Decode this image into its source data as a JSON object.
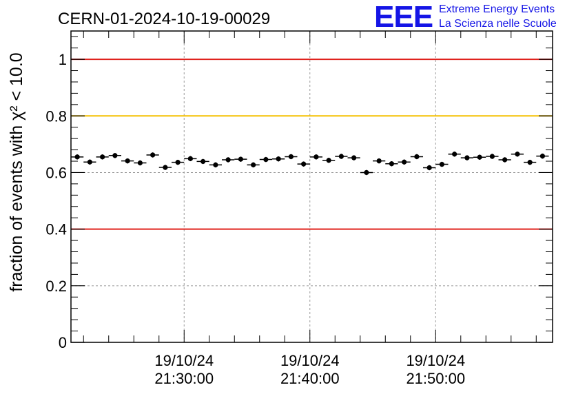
{
  "chart_data": {
    "type": "scatter",
    "title": "CERN-01-2024-10-19-00029",
    "ylabel": "fraction of events with χ² < 10.0",
    "xlabel": "",
    "ylim": [
      0,
      1.1
    ],
    "yticks": [
      0,
      0.2,
      0.4,
      0.6,
      0.8,
      1
    ],
    "ytick_labels": [
      "0",
      "0.2",
      "0.4",
      "0.6",
      "0.8",
      "1"
    ],
    "xlim_minutes": [
      21.0,
      59.3
    ],
    "xtick_labels": [
      {
        "date": "19/10/24",
        "time": "21:30:00",
        "minute": 30
      },
      {
        "date": "19/10/24",
        "time": "21:40:00",
        "minute": 40
      },
      {
        "date": "19/10/24",
        "time": "21:50:00",
        "minute": 50
      }
    ],
    "grid": true,
    "reference_lines": [
      {
        "y": 1.0,
        "color": "#e0201b"
      },
      {
        "y": 0.8,
        "color": "#f5c000"
      },
      {
        "y": 0.4,
        "color": "#e0201b"
      }
    ],
    "point_color": "#000000",
    "bin_width_minutes": 1,
    "series": [
      {
        "x_minutes": [
          21.5,
          22.5,
          23.5,
          24.5,
          25.5,
          26.5,
          27.5,
          28.5,
          29.5,
          30.5,
          31.5,
          32.5,
          33.5,
          34.5,
          35.5,
          36.5,
          37.5,
          38.5,
          39.5,
          40.5,
          41.5,
          42.5,
          43.5,
          44.5,
          45.5,
          46.5,
          47.5,
          48.5,
          49.5,
          50.5,
          51.5,
          52.5,
          53.5,
          54.5,
          55.5,
          56.5,
          57.5,
          58.5
        ],
        "values": [
          0.655,
          0.637,
          0.655,
          0.66,
          0.641,
          0.634,
          0.662,
          0.618,
          0.636,
          0.649,
          0.639,
          0.627,
          0.645,
          0.647,
          0.627,
          0.646,
          0.648,
          0.656,
          0.63,
          0.655,
          0.643,
          0.657,
          0.652,
          0.6,
          0.641,
          0.631,
          0.637,
          0.656,
          0.617,
          0.629,
          0.665,
          0.652,
          0.654,
          0.657,
          0.645,
          0.665,
          0.636,
          0.658
        ],
        "errors": [
          0.009,
          0.009,
          0.009,
          0.009,
          0.009,
          0.009,
          0.009,
          0.009,
          0.009,
          0.009,
          0.009,
          0.009,
          0.009,
          0.009,
          0.009,
          0.009,
          0.009,
          0.009,
          0.009,
          0.009,
          0.009,
          0.009,
          0.009,
          0.009,
          0.009,
          0.009,
          0.009,
          0.009,
          0.009,
          0.009,
          0.009,
          0.009,
          0.009,
          0.009,
          0.009,
          0.009,
          0.009,
          0.009
        ]
      }
    ]
  },
  "logo": {
    "letters": "EEE",
    "line1": "Extreme Energy Events",
    "line2": "La Scienza nelle Scuole",
    "color": "#1515e6"
  }
}
